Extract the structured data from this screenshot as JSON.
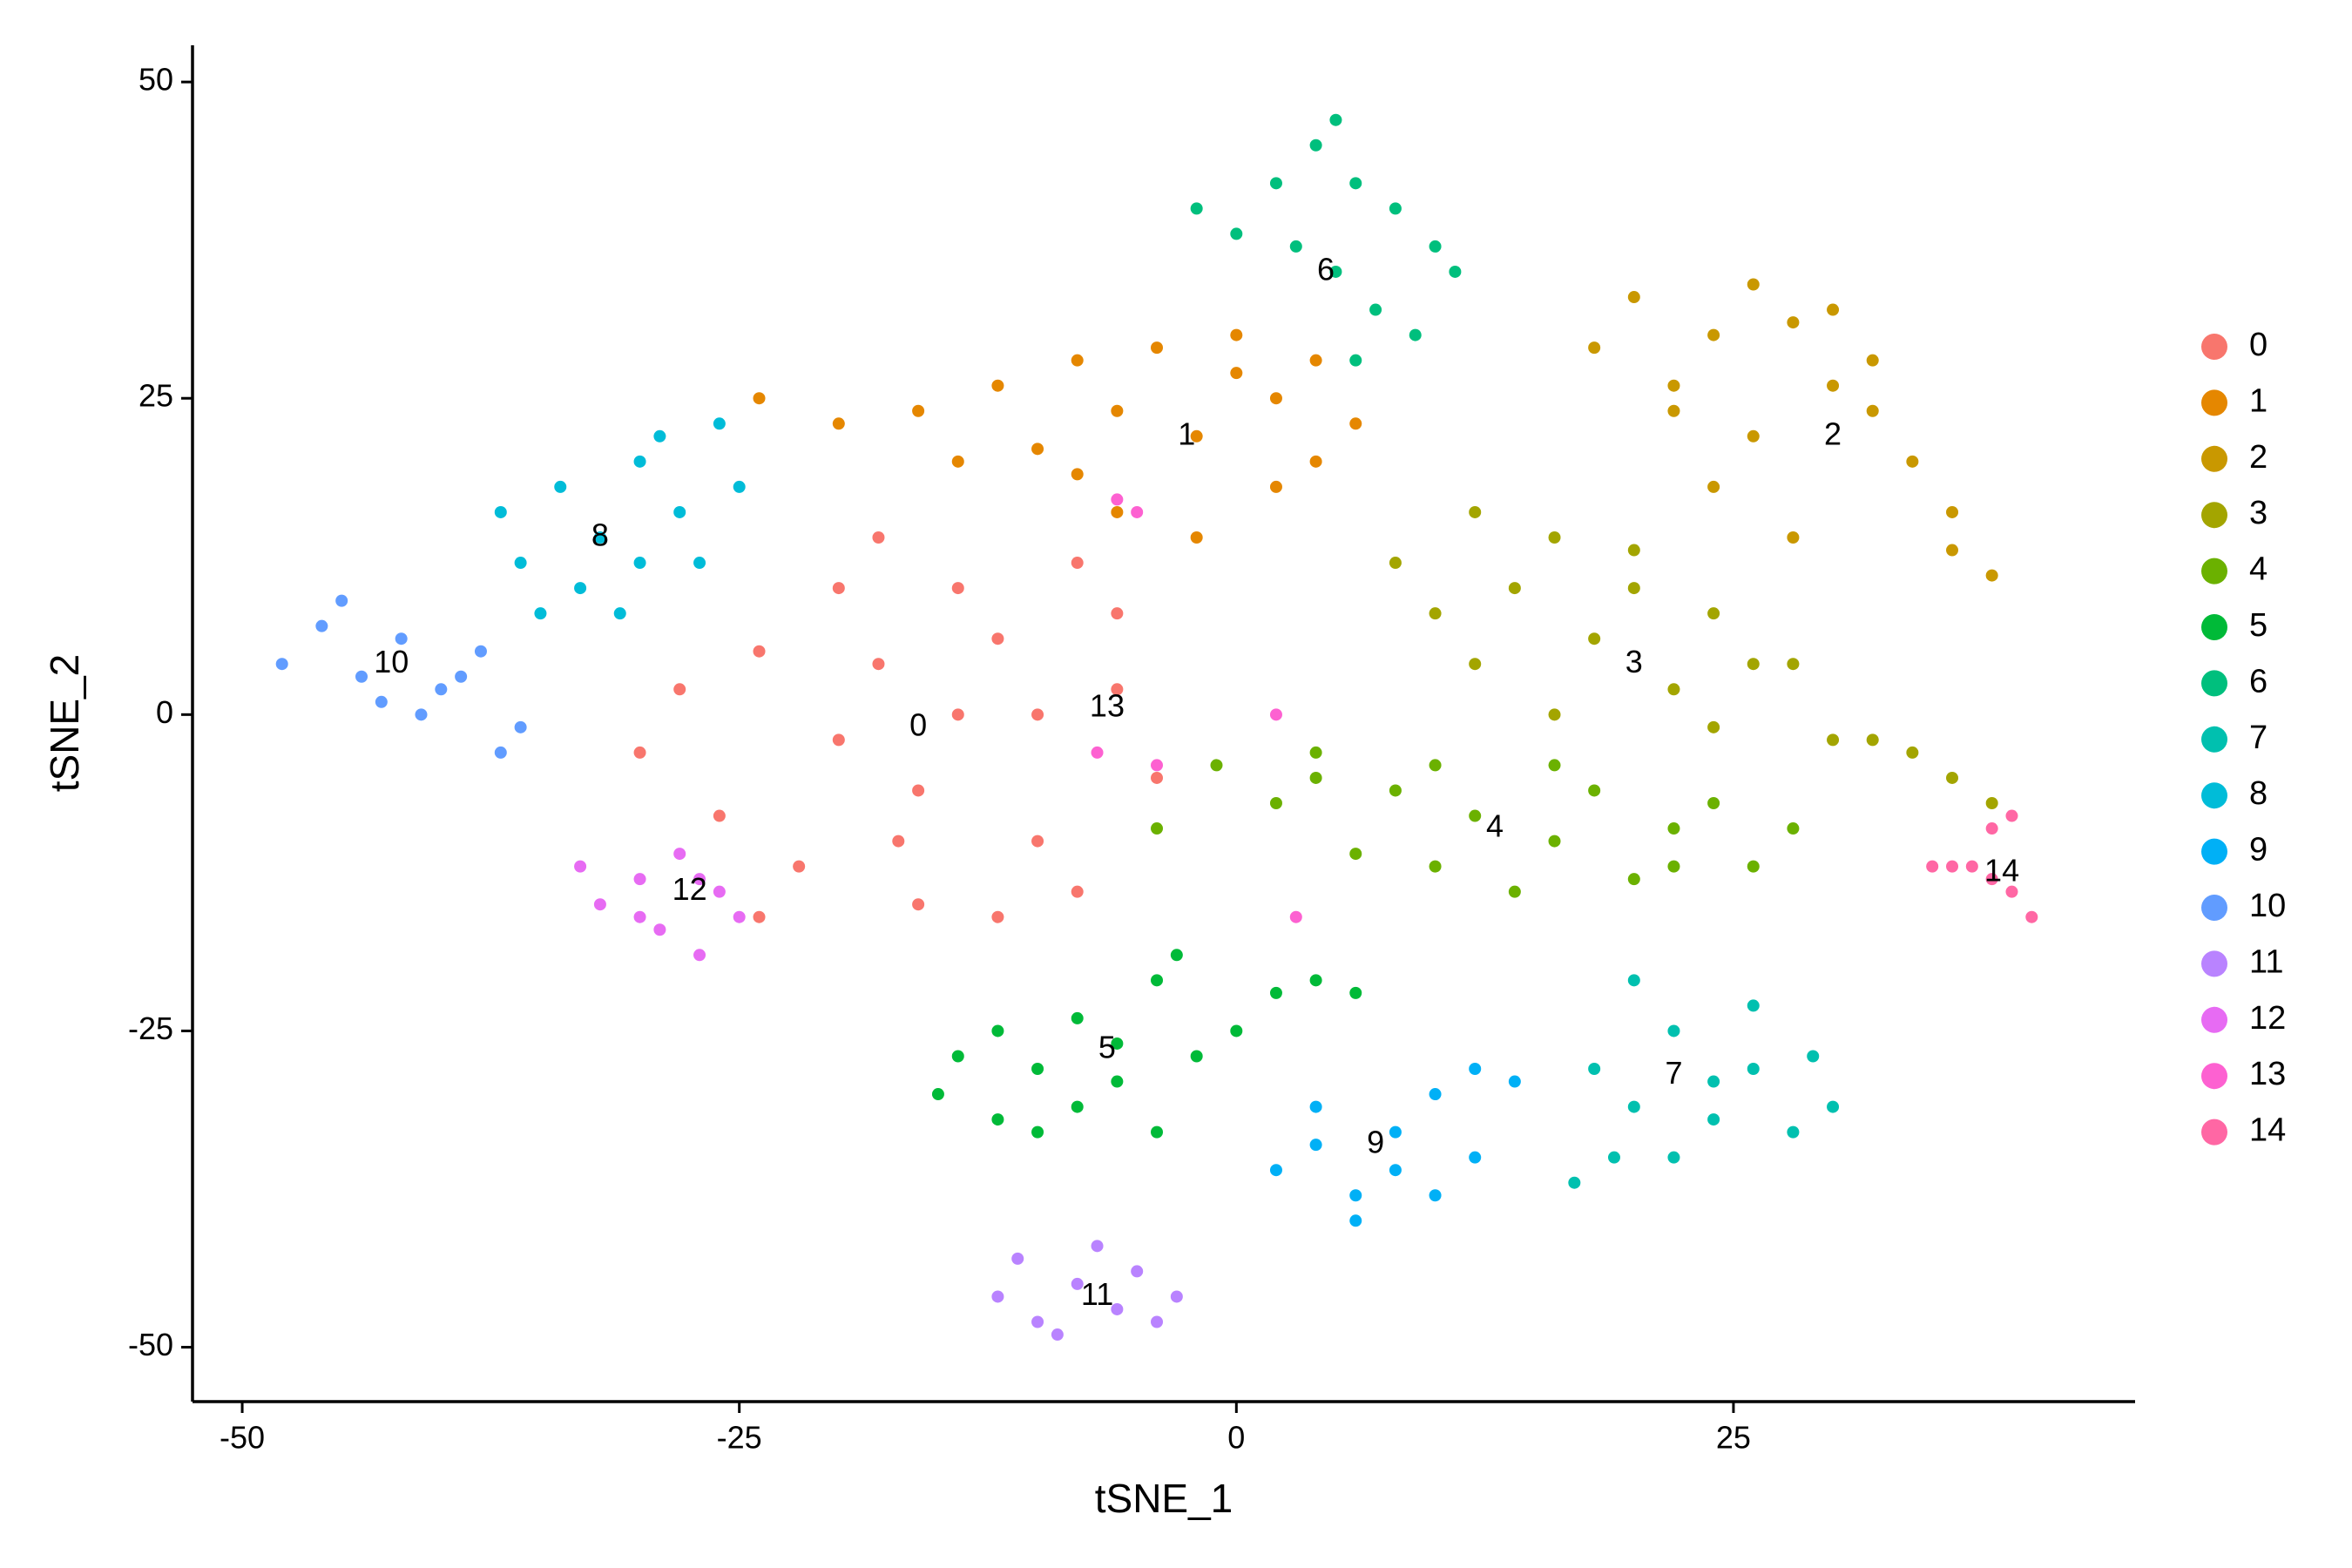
{
  "chart_data": {
    "type": "scatter",
    "x_label": "tSNE_1",
    "y_label": "tSNE_2",
    "xlim": [
      -52.5,
      45.2
    ],
    "ylim": [
      -54.3,
      52.9
    ],
    "xticks": [
      -50,
      -25,
      0,
      25
    ],
    "yticks": [
      -50,
      -25,
      0,
      25,
      50
    ],
    "legend": "right",
    "series": [
      {
        "name": "0",
        "color": "#F8766D",
        "label_at": [
          -16,
          -1
        ],
        "x": [
          -30,
          -28,
          -26,
          -24,
          -22,
          -20,
          -18,
          -16,
          -14,
          -12,
          -10,
          -8,
          -6,
          -4,
          -20,
          -16,
          -12,
          -8,
          -24,
          -18,
          -14,
          -10,
          -6,
          -17
        ],
        "y": [
          -3,
          2,
          -8,
          5,
          -12,
          10,
          14,
          -15,
          0,
          6,
          -10,
          12,
          2,
          -5,
          -2,
          -6,
          -16,
          -14,
          -16,
          4,
          10,
          0,
          8,
          -10
        ]
      },
      {
        "name": "1",
        "color": "#E58700",
        "label_at": [
          -2.5,
          22
        ],
        "x": [
          -24,
          -20,
          -16,
          -12,
          -10,
          -8,
          -6,
          -4,
          -2,
          0,
          2,
          4,
          6,
          -6,
          -2,
          2,
          -14,
          -8,
          0,
          4
        ],
        "y": [
          25,
          23,
          24,
          26,
          21,
          28,
          24,
          29,
          22,
          27,
          25,
          20,
          23,
          16,
          14,
          18,
          20,
          19,
          30,
          28
        ]
      },
      {
        "name": "2",
        "color": "#C99800",
        "label_at": [
          30,
          22
        ],
        "x": [
          18,
          20,
          22,
          24,
          26,
          28,
          30,
          32,
          34,
          36,
          38,
          24,
          28,
          32,
          22,
          26,
          30,
          36
        ],
        "y": [
          29,
          33,
          26,
          30,
          22,
          31,
          26,
          28,
          20,
          16,
          11,
          18,
          14,
          24,
          24,
          34,
          32,
          13
        ]
      },
      {
        "name": "3",
        "color": "#A3A500",
        "label_at": [
          20,
          4
        ],
        "x": [
          8,
          10,
          12,
          14,
          16,
          18,
          20,
          22,
          24,
          26,
          28,
          30,
          32,
          34,
          36,
          38,
          12,
          16,
          20,
          24
        ],
        "y": [
          12,
          8,
          16,
          10,
          14,
          6,
          10,
          2,
          8,
          4,
          4,
          -2,
          -2,
          -3,
          -5,
          -7,
          4,
          0,
          13,
          -1
        ]
      },
      {
        "name": "4",
        "color": "#6BB100",
        "label_at": [
          13,
          -9
        ],
        "x": [
          -4,
          -1,
          2,
          4,
          6,
          8,
          10,
          12,
          14,
          16,
          18,
          20,
          22,
          24,
          26,
          28,
          4,
          10,
          16,
          22
        ],
        "y": [
          -9,
          -4,
          -7,
          -3,
          -11,
          -6,
          -12,
          -8,
          -14,
          -10,
          -6,
          -13,
          -9,
          -7,
          -12,
          -9,
          -5,
          -4,
          -4,
          -12
        ]
      },
      {
        "name": "5",
        "color": "#00BA38",
        "label_at": [
          -6.5,
          -26.5
        ],
        "x": [
          -15,
          -14,
          -12,
          -10,
          -8,
          -6,
          -4,
          -2,
          0,
          2,
          4,
          6,
          -12,
          -8,
          -4,
          -3,
          -10,
          -6
        ],
        "y": [
          -30,
          -27,
          -25,
          -33,
          -24,
          -29,
          -21,
          -27,
          -25,
          -22,
          -21,
          -22,
          -32,
          -31,
          -33,
          -19,
          -28,
          -26
        ]
      },
      {
        "name": "6",
        "color": "#00BF7D",
        "label_at": [
          4.5,
          35
        ],
        "x": [
          -2,
          0,
          2,
          3,
          4,
          5,
          6,
          7,
          8,
          9,
          10,
          11,
          6,
          5
        ],
        "y": [
          40,
          38,
          42,
          37,
          45,
          47,
          42,
          32,
          40,
          30,
          37,
          35,
          28,
          35
        ]
      },
      {
        "name": "7",
        "color": "#00C0AF",
        "label_at": [
          22,
          -28.5
        ],
        "x": [
          17,
          18,
          20,
          22,
          24,
          26,
          28,
          29,
          30,
          22,
          26,
          20,
          19,
          24
        ],
        "y": [
          -37,
          -28,
          -31,
          -25,
          -29,
          -23,
          -33,
          -27,
          -31,
          -35,
          -28,
          -21,
          -35,
          -32
        ]
      },
      {
        "name": "8",
        "color": "#00BCD8",
        "label_at": [
          -32,
          14
        ],
        "x": [
          -37,
          -36,
          -34,
          -32,
          -30,
          -28,
          -26,
          -25,
          -33,
          -31,
          -29,
          -35,
          -27,
          -30
        ],
        "y": [
          16,
          12,
          18,
          14,
          20,
          16,
          23,
          18,
          10,
          8,
          22,
          8,
          12,
          12
        ]
      },
      {
        "name": "9",
        "color": "#00B0F6",
        "label_at": [
          7,
          -34
        ],
        "x": [
          2,
          4,
          6,
          8,
          10,
          12,
          14,
          6,
          10,
          4,
          8,
          12
        ],
        "y": [
          -36,
          -31,
          -38,
          -33,
          -30,
          -35,
          -29,
          -40,
          -38,
          -34,
          -36,
          -28
        ]
      },
      {
        "name": "10",
        "color": "#619CFF",
        "label_at": [
          -42.5,
          4
        ],
        "x": [
          -48,
          -46,
          -44,
          -42,
          -40,
          -38,
          -36,
          -45,
          -41,
          -43,
          -39,
          -37
        ],
        "y": [
          4,
          7,
          3,
          6,
          2,
          5,
          -1,
          9,
          0,
          1,
          3,
          -3
        ]
      },
      {
        "name": "11",
        "color": "#B983FF",
        "label_at": [
          -7,
          -46
        ],
        "x": [
          -12,
          -11,
          -10,
          -8,
          -7,
          -6,
          -5,
          -4,
          -3,
          -9
        ],
        "y": [
          -46,
          -43,
          -48,
          -45,
          -42,
          -47,
          -44,
          -48,
          -46,
          -49
        ]
      },
      {
        "name": "12",
        "color": "#E76BF3",
        "label_at": [
          -27.5,
          -14
        ],
        "x": [
          -33,
          -32,
          -30,
          -29,
          -28,
          -27,
          -26,
          -25,
          -30,
          -27
        ],
        "y": [
          -12,
          -15,
          -13,
          -17,
          -11,
          -19,
          -14,
          -16,
          -16,
          -13
        ]
      },
      {
        "name": "13",
        "color": "#FD61D1",
        "label_at": [
          -6.5,
          0.5
        ],
        "x": [
          -6,
          -5,
          2,
          3,
          -4,
          -7
        ],
        "y": [
          17,
          16,
          0,
          -16,
          -4,
          -3
        ]
      },
      {
        "name": "14",
        "color": "#FF67A4",
        "label_at": [
          38.5,
          -12.5
        ],
        "x": [
          35,
          36,
          37,
          38,
          39,
          40,
          39,
          38
        ],
        "y": [
          -12,
          -12,
          -12,
          -9,
          -8,
          -16,
          -14,
          -13
        ]
      }
    ]
  }
}
